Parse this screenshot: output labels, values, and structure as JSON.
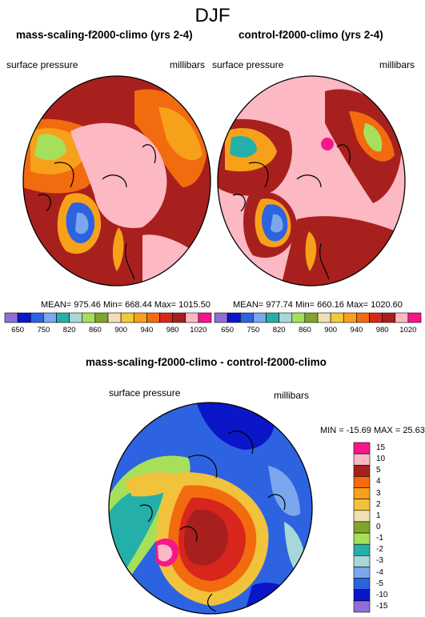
{
  "season": "DJF",
  "palette_full": [
    "#8f6fd6",
    "#0a16c8",
    "#2d63e0",
    "#7aa7ee",
    "#24b0a8",
    "#a8d7d9",
    "#a6e05a",
    "#7fa52f",
    "#f1dfb5",
    "#f3c93c",
    "#f7a11b",
    "#f26b0f",
    "#d8261c",
    "#a8201d",
    "#fcb8c3",
    "#f8168b"
  ],
  "palette_diff": [
    "#8f6fd6",
    "#0a16c8",
    "#2d63e0",
    "#7aa7ee",
    "#a8d7d9",
    "#24b0a8",
    "#a6e05a",
    "#7fa52f",
    "#f1dfb5",
    "#f1c23c",
    "#f7a11b",
    "#f26b0f",
    "#a8201d",
    "#fcb8c3",
    "#f8168b"
  ],
  "panels": [
    {
      "title": "mass-scaling-f2000-climo (yrs 2-4)",
      "var": "surface pressure",
      "units": "millibars",
      "stats": "MEAN= 975.46  Min= 668.44  Max= 1015.50"
    },
    {
      "title": "control-f2000-climo (yrs 2-4)",
      "var": "surface pressure",
      "units": "millibars",
      "stats": "MEAN= 977.74  Min= 660.16  Max= 1020.60"
    }
  ],
  "diff": {
    "title": "mass-scaling-f2000-climo - control-f2000-climo",
    "var": "surface pressure",
    "units": "millibars",
    "stats": "MIN = -15.69 MAX =  25.63"
  },
  "chart_data": [
    {
      "type": "heatmap",
      "title": "mass-scaling-f2000-climo (yrs 2-4)",
      "variable": "surface pressure",
      "units": "millibars",
      "mean": 975.46,
      "min": 668.44,
      "max": 1015.5,
      "colorbar_ticks": [
        "650",
        "750",
        "820",
        "860",
        "900",
        "940",
        "980",
        "1020"
      ],
      "levels": [
        650,
        700,
        750,
        800,
        820,
        840,
        860,
        880,
        900,
        920,
        940,
        960,
        980,
        1000,
        1020
      ]
    },
    {
      "type": "heatmap",
      "title": "control-f2000-climo (yrs 2-4)",
      "variable": "surface pressure",
      "units": "millibars",
      "mean": 977.74,
      "min": 660.16,
      "max": 1020.6,
      "colorbar_ticks": [
        "650",
        "750",
        "820",
        "860",
        "900",
        "940",
        "980",
        "1020"
      ],
      "levels": [
        650,
        700,
        750,
        800,
        820,
        840,
        860,
        880,
        900,
        920,
        940,
        960,
        980,
        1000,
        1020
      ]
    },
    {
      "type": "heatmap",
      "title": "mass-scaling-f2000-climo - control-f2000-climo",
      "variable": "surface pressure",
      "units": "millibars",
      "min": -15.69,
      "max": 25.63,
      "colorbar_labels": [
        "15",
        "10",
        "5",
        "4",
        "3",
        "2",
        "1",
        "0",
        "-1",
        "-2",
        "-3",
        "-4",
        "-5",
        "-10",
        "-15"
      ]
    }
  ]
}
